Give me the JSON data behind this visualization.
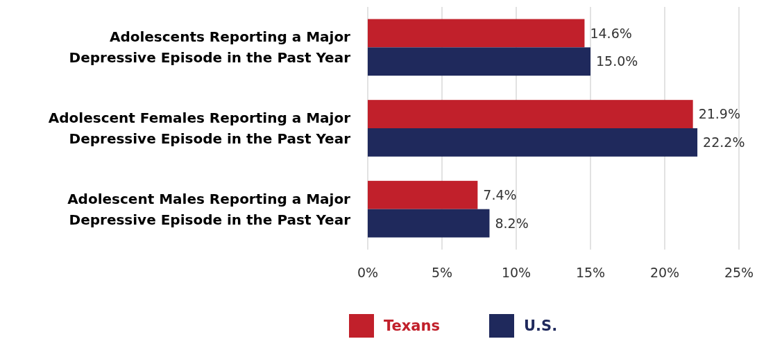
{
  "chart_data": {
    "type": "bar",
    "orientation": "horizontal",
    "categories": [
      "Adolescents Reporting a Major Depressive Episode in the Past Year",
      "Adolescent Females Reporting a Major Depressive Episode in the Past Year",
      "Adolescent Males Reporting a Major Depressive Episode in the Past Year"
    ],
    "series": [
      {
        "name": "Texans",
        "color": "#c1202b",
        "values": [
          14.6,
          21.9,
          7.4
        ],
        "value_labels": [
          "14.6%",
          "21.9%",
          "7.4%"
        ]
      },
      {
        "name": "U.S.",
        "color": "#1f295c",
        "values": [
          15.0,
          22.2,
          8.2
        ],
        "value_labels": [
          "15.0%",
          "22.2%",
          "8.2%"
        ]
      }
    ],
    "xlim": [
      0,
      25
    ],
    "xticks": [
      {
        "value": 0,
        "label": "0%"
      },
      {
        "value": 5,
        "label": "5%"
      },
      {
        "value": 10,
        "label": "10%"
      },
      {
        "value": 15,
        "label": "15%"
      },
      {
        "value": 20,
        "label": "20%"
      },
      {
        "value": 25,
        "label": "25%"
      }
    ],
    "grid": "x",
    "legend": "bottom"
  }
}
